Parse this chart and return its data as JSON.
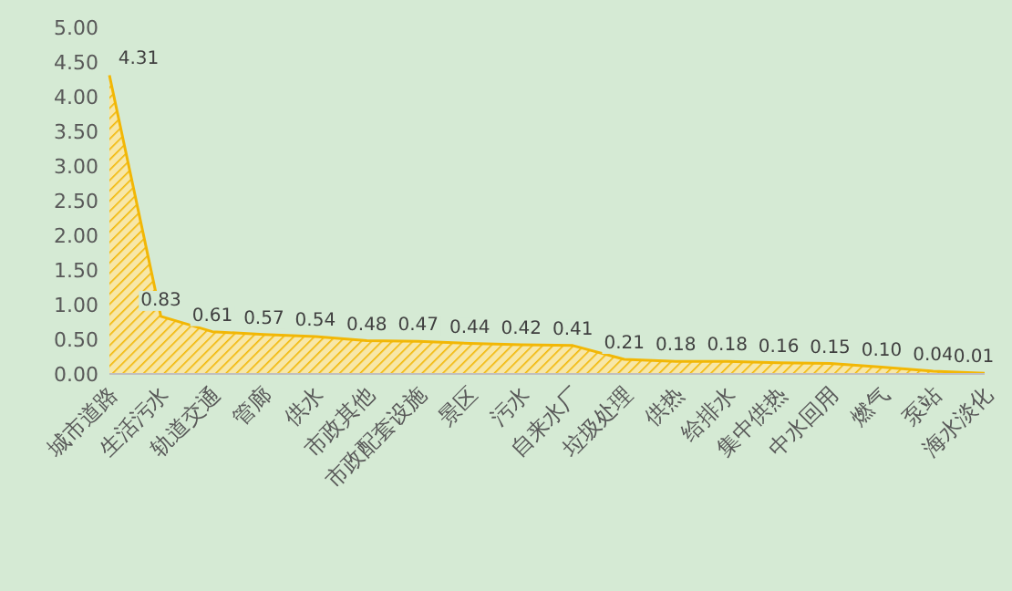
{
  "chart_data": {
    "type": "area",
    "color": "#f2b705",
    "categories": [
      "城市道路",
      "生活污水",
      "轨道交通",
      "管廊",
      "供水",
      "市政其他",
      "市政配套设施",
      "景区",
      "污水",
      "自来水厂",
      "垃圾处理",
      "供热",
      "给排水",
      "集中供热",
      "中水回用",
      "燃气",
      "泵站",
      "海水淡化"
    ],
    "values": [
      4.31,
      0.83,
      0.61,
      0.57,
      0.54,
      0.48,
      0.47,
      0.44,
      0.42,
      0.41,
      0.21,
      0.18,
      0.18,
      0.16,
      0.15,
      0.1,
      0.04,
      0.01
    ],
    "value_labels": [
      "4.31",
      "0.83",
      "0.61",
      "0.57",
      "0.54",
      "0.48",
      "0.47",
      "0.44",
      "0.42",
      "0.41",
      "0.21",
      "0.18",
      "0.18",
      "0.16",
      "0.15",
      "0.10",
      "0.04",
      "0.01"
    ],
    "ylim": [
      0,
      5
    ],
    "yticks": [
      {
        "value": 0,
        "label": "0.00"
      },
      {
        "value": 0.5,
        "label": "0.50"
      },
      {
        "value": 1,
        "label": "1.00"
      },
      {
        "value": 1.5,
        "label": "1.50"
      },
      {
        "value": 2,
        "label": "2.00"
      },
      {
        "value": 2.5,
        "label": "2.50"
      },
      {
        "value": 3,
        "label": "3.00"
      },
      {
        "value": 3.5,
        "label": "3.50"
      },
      {
        "value": 4,
        "label": "4.00"
      },
      {
        "value": 4.5,
        "label": "4.50"
      },
      {
        "value": 5,
        "label": "5.00"
      }
    ]
  }
}
